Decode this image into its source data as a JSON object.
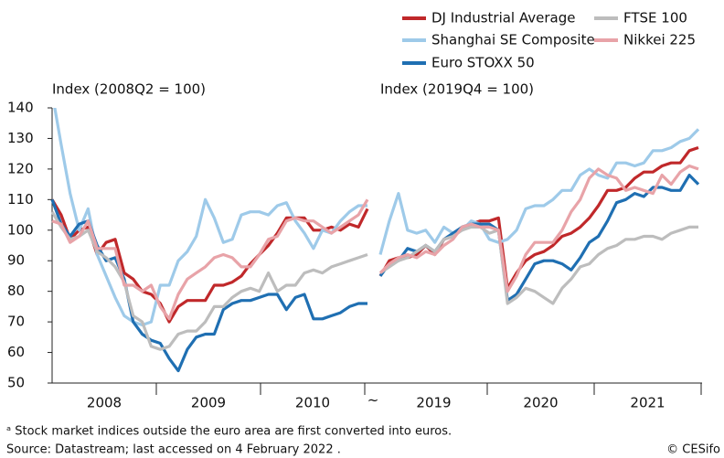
{
  "chart_data": {
    "type": "line",
    "ylim": [
      50,
      140
    ],
    "yticks": [
      50,
      60,
      70,
      80,
      90,
      100,
      110,
      120,
      130,
      140
    ],
    "legend": "top-right",
    "break_label": "~",
    "panels": [
      {
        "y_label": "Index (2008Q2 = 100)",
        "years": [
          "2008",
          "2009",
          "2010"
        ]
      },
      {
        "y_label": "Index (2019Q4 = 100)",
        "years": [
          "2019",
          "2020",
          "2021"
        ]
      }
    ],
    "series": [
      {
        "name": "DJ Industrial Average",
        "color": "#c0282a",
        "values": [
          [
            110,
            105,
            97,
            100,
            101,
            92,
            96,
            97,
            86,
            84,
            80,
            79,
            76,
            70,
            75,
            77,
            77,
            77,
            82,
            82,
            83,
            85,
            89,
            92,
            95,
            99,
            104,
            104,
            104,
            100,
            100,
            101,
            100,
            102,
            101,
            107
          ],
          [
            85,
            90,
            91,
            91,
            92,
            95,
            92,
            97,
            98,
            101,
            102,
            103,
            103,
            104,
            81,
            86,
            90,
            92,
            93,
            95,
            98,
            99,
            101,
            104,
            108,
            113,
            113,
            114,
            117,
            119,
            119,
            121,
            122,
            122,
            126,
            127
          ]
        ]
      },
      {
        "name": "Shanghai SE Composite",
        "color": "#9ecae9",
        "values": [
          [
            145,
            128,
            112,
            100,
            107,
            92,
            85,
            78,
            72,
            70,
            69,
            70,
            82,
            82,
            90,
            93,
            98,
            110,
            104,
            96,
            97,
            105,
            106,
            106,
            105,
            108,
            109,
            103,
            99,
            94,
            100,
            99,
            103,
            106,
            108,
            108
          ],
          [
            92,
            103,
            112,
            100,
            99,
            100,
            96,
            101,
            99,
            100,
            103,
            102,
            97,
            96,
            97,
            100,
            107,
            108,
            108,
            110,
            113,
            113,
            118,
            120,
            118,
            117,
            122,
            122,
            121,
            122,
            126,
            126,
            127,
            129,
            130,
            133
          ]
        ]
      },
      {
        "name": "Euro STOXX 50",
        "color": "#1f6fb2",
        "values": [
          [
            110,
            102,
            98,
            102,
            103,
            95,
            90,
            91,
            84,
            70,
            66,
            64,
            63,
            58,
            54,
            61,
            65,
            66,
            66,
            74,
            76,
            77,
            77,
            78,
            79,
            79,
            74,
            78,
            79,
            71,
            71,
            72,
            73,
            75,
            76,
            76
          ],
          [
            85,
            89,
            90,
            94,
            93,
            95,
            93,
            97,
            99,
            101,
            102,
            102,
            102,
            100,
            77,
            79,
            84,
            89,
            90,
            90,
            89,
            87,
            91,
            96,
            98,
            103,
            109,
            110,
            112,
            111,
            114,
            114,
            113,
            113,
            118,
            115
          ]
        ]
      },
      {
        "name": "FTSE 100",
        "color": "#bdbdbd",
        "values": [
          [
            106,
            101,
            97,
            98,
            100,
            93,
            91,
            88,
            83,
            72,
            70,
            62,
            61,
            62,
            66,
            67,
            67,
            70,
            75,
            75,
            78,
            80,
            81,
            80,
            86,
            80,
            82,
            82,
            86,
            87,
            86,
            88,
            89,
            90,
            91,
            92
          ],
          [
            86,
            88,
            90,
            91,
            93,
            95,
            93,
            97,
            98,
            100,
            101,
            101,
            99,
            100,
            76,
            78,
            81,
            80,
            78,
            76,
            81,
            84,
            88,
            89,
            92,
            94,
            95,
            97,
            97,
            98,
            98,
            97,
            99,
            100,
            101,
            101
          ]
        ]
      },
      {
        "name": "Nikkei 225",
        "color": "#e8a3a8",
        "values": [
          [
            103,
            102,
            96,
            98,
            103,
            94,
            94,
            94,
            82,
            82,
            80,
            82,
            75,
            71,
            79,
            84,
            86,
            88,
            91,
            92,
            91,
            88,
            88,
            92,
            97,
            98,
            103,
            104,
            103,
            103,
            101,
            99,
            101,
            103,
            105,
            110
          ],
          [
            86,
            89,
            91,
            92,
            91,
            93,
            92,
            95,
            97,
            101,
            102,
            101,
            101,
            100,
            80,
            85,
            92,
            96,
            96,
            96,
            100,
            106,
            110,
            117,
            120,
            118,
            117,
            113,
            114,
            113,
            112,
            118,
            115,
            119,
            121,
            120
          ]
        ]
      }
    ],
    "footnotes": [
      "ᵃ Stock market indices outside the euro area are first converted into euros.",
      "Source: Datastream; last accessed on 4 February 2022 ."
    ],
    "credit": "© CESifo"
  }
}
